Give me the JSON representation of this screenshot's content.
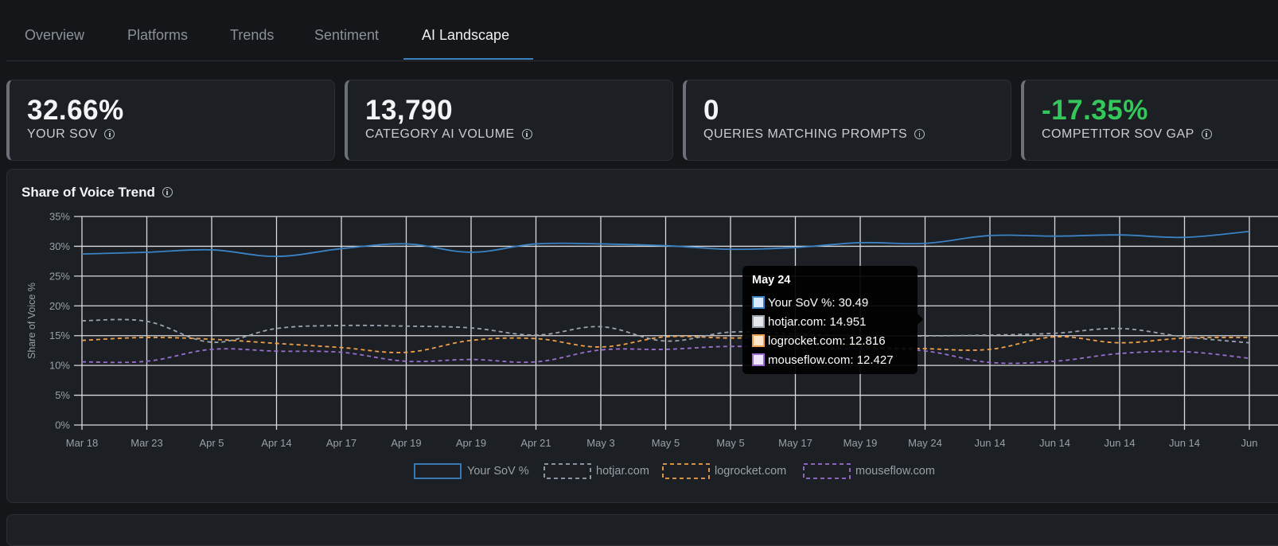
{
  "tabs": [
    {
      "label": "Overview",
      "active": false
    },
    {
      "label": "Platforms",
      "active": false
    },
    {
      "label": "Trends",
      "active": false
    },
    {
      "label": "Sentiment",
      "active": false
    },
    {
      "label": "AI Landscape",
      "active": true
    }
  ],
  "kpis": [
    {
      "value": "32.66%",
      "label": "YOUR SOV",
      "color": "#f2f4f6"
    },
    {
      "value": "13,790",
      "label": "CATEGORY AI VOLUME",
      "color": "#f2f4f6"
    },
    {
      "value": "0",
      "label": "QUERIES MATCHING PROMPTS",
      "color": "#f2f4f6"
    },
    {
      "value": "-17.35%",
      "label": "COMPETITOR SOV GAP",
      "color": "#34c759"
    }
  ],
  "panel": {
    "title": "Share of Voice Trend"
  },
  "tooltip": {
    "title": "May 24",
    "rows": [
      {
        "text": "Your SoV %: 30.49",
        "color": "#3b82c4"
      },
      {
        "text": "hotjar.com: 14.951",
        "color": "#9ca3af"
      },
      {
        "text": "logrocket.com: 12.816",
        "color": "#f0a04b"
      },
      {
        "text": "mouseflow.com: 12.427",
        "color": "#9b6fd1"
      }
    ]
  },
  "chart_data": {
    "type": "line",
    "title": "Share of Voice Trend",
    "ylabel": "Share of Voice %",
    "xlabel": "",
    "ylim": [
      0,
      35
    ],
    "y_ticks": [
      "0%",
      "5%",
      "10%",
      "15%",
      "20%",
      "25%",
      "30%",
      "35%"
    ],
    "categories": [
      "Mar 18",
      "Mar 23",
      "Apr 5",
      "Apr 14",
      "Apr 17",
      "Apr 19",
      "Apr 19",
      "Apr 21",
      "May 3",
      "May 5",
      "May 5",
      "May 17",
      "May 19",
      "May 24",
      "Jun 14",
      "Jun 14",
      "Jun 14",
      "Jun 14",
      "Jun"
    ],
    "grid": true,
    "legend_position": "bottom",
    "series": [
      {
        "name": "Your SoV %",
        "color": "#3b82c4",
        "dashed": false,
        "values": [
          28.7,
          29.0,
          29.4,
          28.3,
          29.6,
          30.4,
          29.0,
          30.4,
          30.4,
          30.1,
          29.5,
          29.8,
          30.6,
          30.49,
          31.8,
          31.7,
          31.9,
          31.5,
          32.5
        ]
      },
      {
        "name": "hotjar.com",
        "color": "#9ca3af",
        "dashed": true,
        "values": [
          17.5,
          17.4,
          13.9,
          16.2,
          16.7,
          16.6,
          16.3,
          15.1,
          16.5,
          14.1,
          15.6,
          15.3,
          15.0,
          14.951,
          15.1,
          15.4,
          16.2,
          14.8,
          13.8
        ]
      },
      {
        "name": "logrocket.com",
        "color": "#f0a04b",
        "dashed": true,
        "values": [
          14.2,
          14.7,
          14.4,
          13.7,
          13.0,
          12.2,
          14.2,
          14.5,
          13.1,
          14.8,
          14.6,
          14.7,
          13.2,
          12.816,
          12.7,
          14.8,
          13.8,
          14.6,
          14.7
        ]
      },
      {
        "name": "mouseflow.com",
        "color": "#9b6fd1",
        "dashed": true,
        "values": [
          10.6,
          10.7,
          12.7,
          12.4,
          12.2,
          10.7,
          11.0,
          10.6,
          12.6,
          12.7,
          13.2,
          12.9,
          12.8,
          12.427,
          10.5,
          10.7,
          12.0,
          12.3,
          11.2
        ]
      }
    ]
  }
}
